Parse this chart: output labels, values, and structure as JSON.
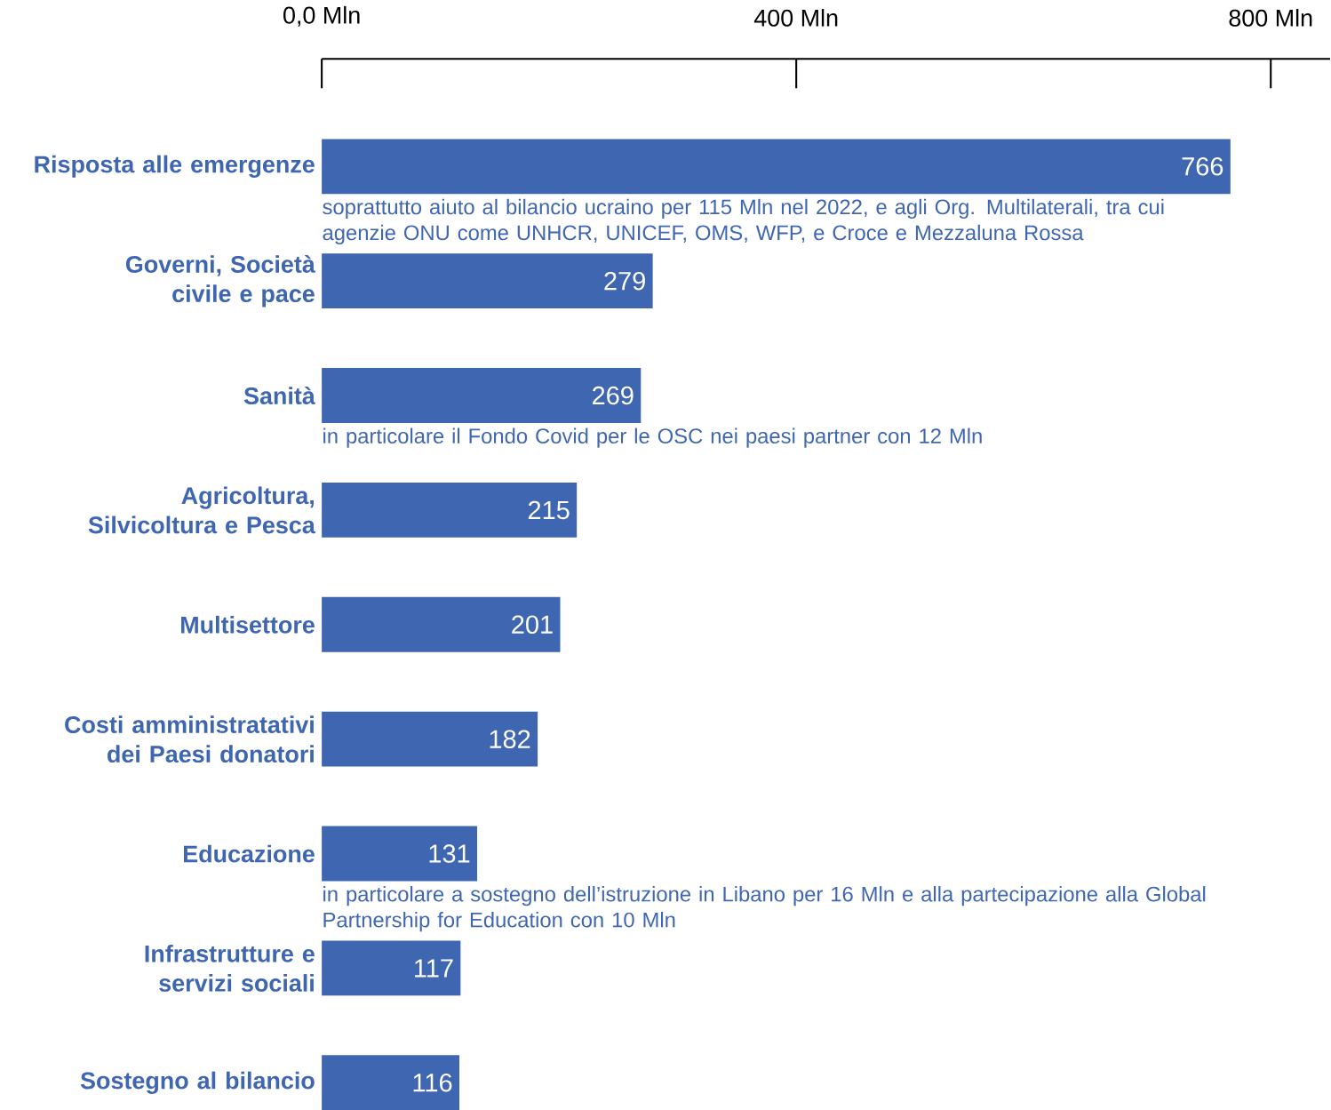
{
  "chart_data": {
    "type": "bar",
    "orientation": "horizontal",
    "categories": [
      "Risposta alle emergenze",
      "Governi, Società civile e pace",
      "Sanità",
      "Agricoltura, Silvicoltura e Pesca",
      "Multisettore",
      "Costi amministratativi dei Paesi donatori",
      "Educazione",
      "Infrastrutture e servizi sociali",
      "Sostegno al bilancio"
    ],
    "values": [
      766,
      279,
      269,
      215,
      201,
      182,
      131,
      117,
      116
    ],
    "color": "#3f66b0",
    "data_labels": true,
    "xlim": [
      0,
      850
    ],
    "xticks": [
      {
        "value": 0,
        "label": "0,0 Mln"
      },
      {
        "value": 400,
        "label": "400 Mln"
      },
      {
        "value": 800,
        "label": "800 Mln"
      }
    ],
    "annotations": [
      "soprattutto aiuto al bilancio ucraino per 115 Mln nel 2022, e agli Org. Multilaterali, tra cui agenzie ONU come UNHCR, UNICEF, OMS, WFP, e Croce e Mezzaluna Rossa",
      "in particolare il Fondo Covid per le OSC nei paesi partner con 12 Mln",
      "in particolare a sostegno dell’istruzione in Libano per 16 Mln e alla partecipazione alla Global Partnership for Education con 10 Mln"
    ]
  }
}
